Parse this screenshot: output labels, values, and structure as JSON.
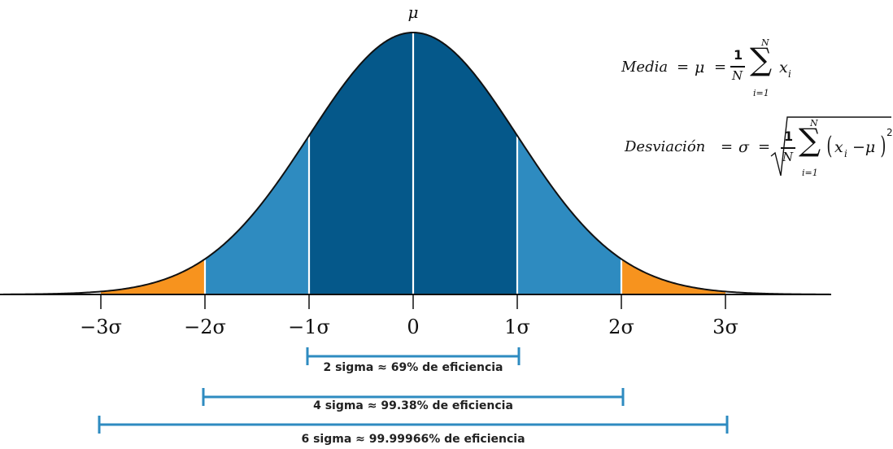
{
  "diagram": {
    "mu_label": "μ",
    "ticks": [
      {
        "value": -3,
        "label": "−3σ"
      },
      {
        "value": -2,
        "label": "−2σ"
      },
      {
        "value": -1,
        "label": "−1σ"
      },
      {
        "value": 0,
        "label": "0"
      },
      {
        "value": 1,
        "label": "1σ"
      },
      {
        "value": 2,
        "label": "2σ"
      },
      {
        "value": 3,
        "label": "3σ"
      }
    ],
    "ranges": [
      {
        "from": -1,
        "to": 1,
        "label": "2 sigma ≈ 69% de eficiencia"
      },
      {
        "from": -2,
        "to": 2,
        "label": "4 sigma ≈ 99.38% de eficiencia"
      },
      {
        "from": -3,
        "to": 3,
        "label": "6 sigma ≈ 99.99966% de eficiencia"
      }
    ],
    "region_colors": {
      "center": "#05588a",
      "inner": "#2e8bc0",
      "tail": "#f7931e",
      "bracket": "#2e8bc0"
    }
  },
  "formulas": {
    "mean": {
      "label": "Media",
      "eq": "=",
      "mu": "μ",
      "one": "1",
      "N": "N",
      "sum_top": "N",
      "sum_bottom": "i=1",
      "term": "x",
      "sub": "i"
    },
    "std": {
      "label": "Desviación",
      "eq": "=",
      "sigma": "σ",
      "one": "1",
      "N": "N",
      "sum_top": "N",
      "sum_bottom": "i=1",
      "term": "x",
      "sub": "i",
      "minus_mu": "−μ",
      "power": "2"
    }
  }
}
